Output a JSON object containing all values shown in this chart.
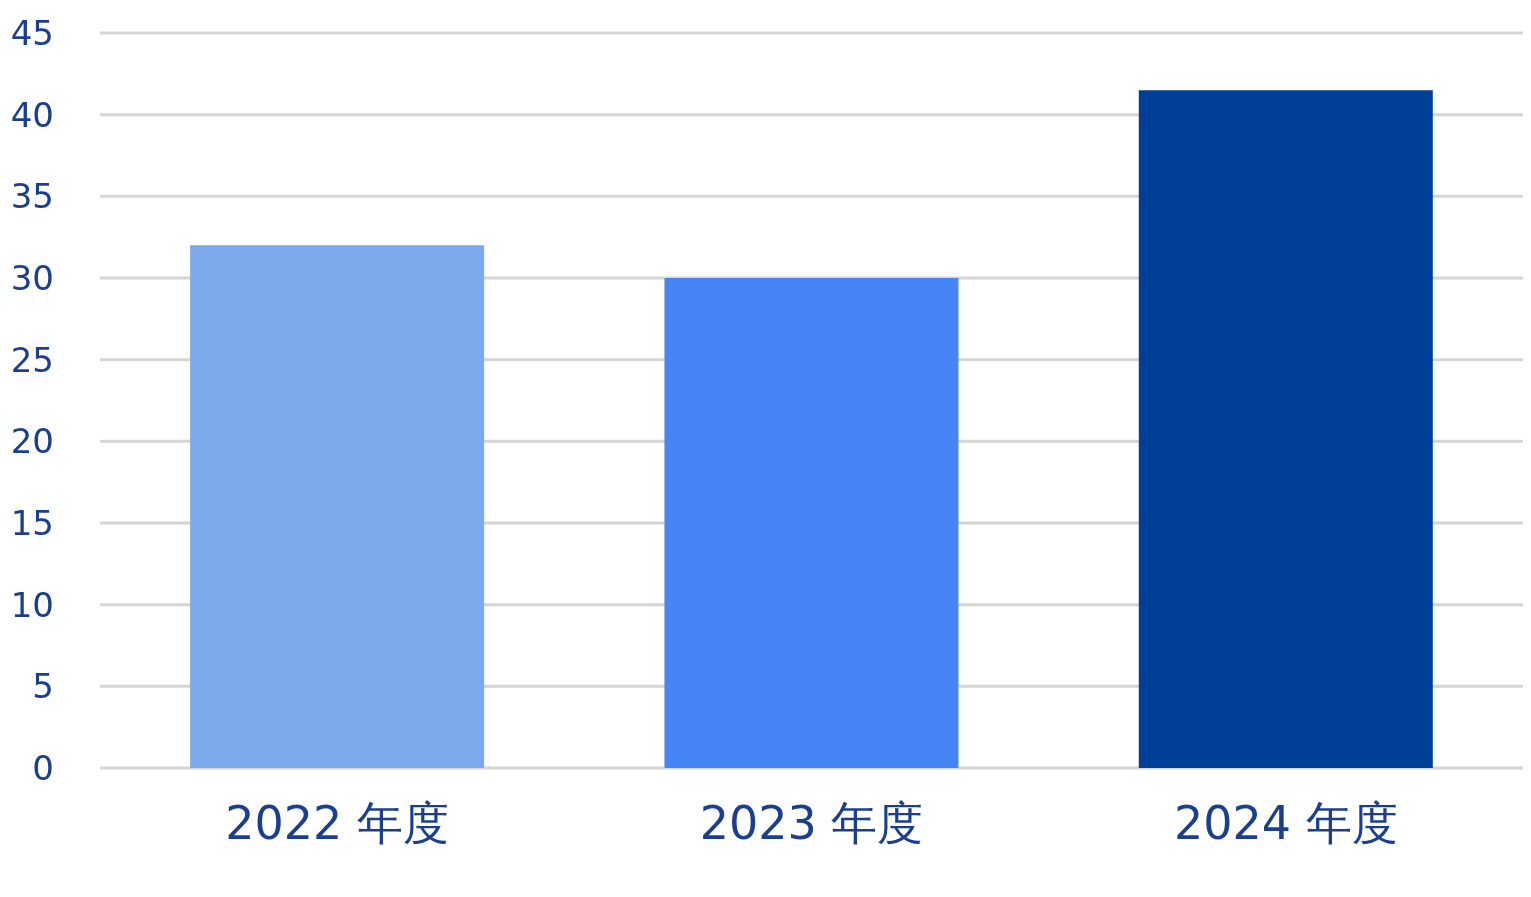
{
  "chart_data": {
    "type": "bar",
    "categories": [
      "2022 年度",
      "2023 年度",
      "2024 年度"
    ],
    "values": [
      32,
      30,
      41.5
    ],
    "colors": [
      "#7ba9ec",
      "#4585f5",
      "#003f98"
    ],
    "ylim": [
      0,
      45
    ],
    "yticks": [
      0,
      5,
      10,
      15,
      20,
      25,
      30,
      35,
      40,
      45
    ],
    "grid": "y"
  }
}
